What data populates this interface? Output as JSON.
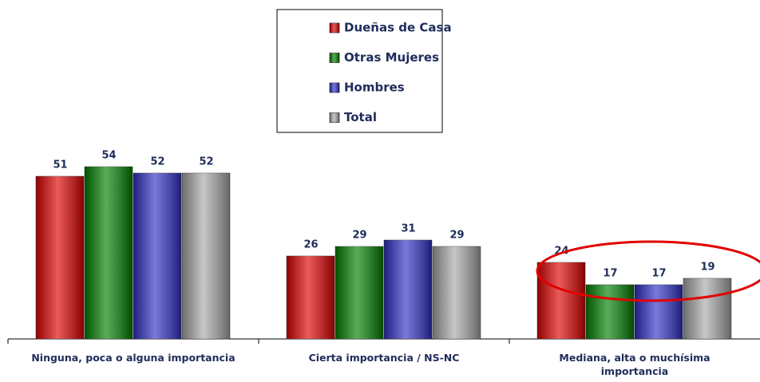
{
  "chart_data": {
    "type": "bar",
    "categories": [
      "Ninguna, poca o alguna importancia",
      "Cierta importancia / NS-NC",
      "Mediana, alta o muchísima importancia"
    ],
    "series": [
      {
        "name": "Dueñas de Casa",
        "color": "#e00000",
        "values": [
          51,
          26,
          24
        ]
      },
      {
        "name": "Otras Mujeres",
        "color": "#008000",
        "values": [
          54,
          29,
          17
        ]
      },
      {
        "name": "Hombres",
        "color": "#3030c8",
        "values": [
          52,
          31,
          17
        ]
      },
      {
        "name": "Total",
        "color": "#a8a8a8",
        "values": [
          52,
          29,
          19
        ]
      }
    ],
    "legend": "top"
  }
}
